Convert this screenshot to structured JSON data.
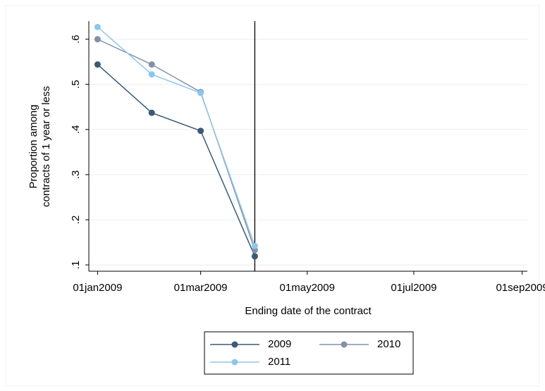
{
  "chart_data": {
    "type": "line",
    "ytitle": [
      "Proportion among",
      "contracts of 1 year or less"
    ],
    "xtitle": "Ending date of the contract",
    "x": [
      "2009-01-01",
      "2009-02-01",
      "2009-03-01",
      "2009-04-01"
    ],
    "series": [
      {
        "name": "2009",
        "color": "#3a5a78",
        "values": [
          0.544,
          0.437,
          0.397,
          0.119
        ]
      },
      {
        "name": "2010",
        "color": "#8192a8",
        "values": [
          0.6,
          0.544,
          0.483,
          0.133
        ]
      },
      {
        "name": "2011",
        "color": "#8ec6ec",
        "values": [
          0.627,
          0.522,
          0.481,
          0.142
        ]
      }
    ],
    "xlim": [
      "2008-12-27",
      "2009-09-04"
    ],
    "xticks": [
      {
        "value": "2009-01-01",
        "label": "01jan2009"
      },
      {
        "value": "2009-03-01",
        "label": "01mar2009"
      },
      {
        "value": "2009-05-01",
        "label": "01may2009"
      },
      {
        "value": "2009-07-01",
        "label": "01jul2009"
      },
      {
        "value": "2009-09-01",
        "label": "01sep2009"
      }
    ],
    "ylim": [
      0.086,
      0.64
    ],
    "yticks": [
      {
        "value": 0.1,
        "label": ".1"
      },
      {
        "value": 0.2,
        "label": ".2"
      },
      {
        "value": 0.3,
        "label": ".3"
      },
      {
        "value": 0.4,
        "label": ".4"
      },
      {
        "value": 0.5,
        "label": ".5"
      },
      {
        "value": 0.6,
        "label": ".6"
      }
    ],
    "xline": "2009-04-01",
    "grid": true
  }
}
